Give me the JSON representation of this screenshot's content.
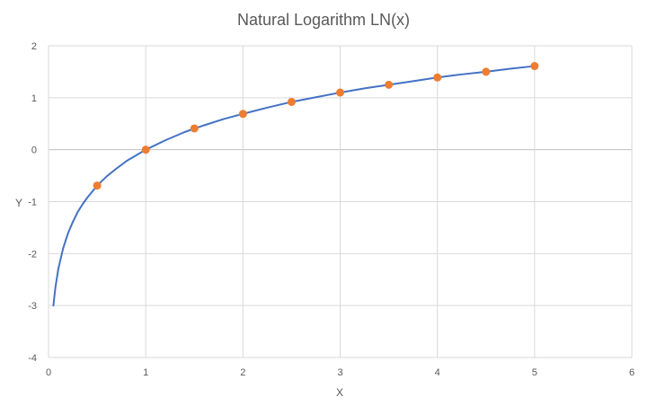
{
  "chart_data": {
    "type": "scatter",
    "title": "Natural Logarithm LN(x)",
    "xlabel": "X",
    "ylabel": "Y",
    "xlim": [
      0,
      6
    ],
    "ylim": [
      -4,
      2
    ],
    "x_ticks": [
      "0",
      "1",
      "2",
      "3",
      "4",
      "5",
      "6"
    ],
    "y_ticks": [
      "2",
      "1",
      "0",
      "-1",
      "-2",
      "-3",
      "-4"
    ],
    "grid": true,
    "legend": "none",
    "series": [
      {
        "kind": "line",
        "color": "#4472C4",
        "function": "ln(x)",
        "x": [
          0.05,
          0.07,
          0.1,
          0.15,
          0.2,
          0.25,
          0.3,
          0.35,
          0.4,
          0.5,
          0.6,
          0.7,
          0.8,
          0.9,
          1.0,
          1.2,
          1.4,
          1.6,
          1.8,
          2.0,
          2.25,
          2.5,
          2.75,
          3.0,
          3.25,
          3.5,
          3.75,
          4.0,
          4.25,
          4.5,
          4.75,
          5.0
        ],
        "y": [
          -3.0,
          -2.66,
          -2.3,
          -1.9,
          -1.61,
          -1.39,
          -1.2,
          -1.05,
          -0.92,
          -0.69,
          -0.51,
          -0.36,
          -0.22,
          -0.11,
          0.0,
          0.18,
          0.34,
          0.47,
          0.59,
          0.69,
          0.81,
          0.92,
          1.01,
          1.1,
          1.18,
          1.25,
          1.32,
          1.39,
          1.45,
          1.5,
          1.56,
          1.61
        ]
      },
      {
        "kind": "markers",
        "color": "#ED7D31",
        "x": [
          0.5,
          1.0,
          1.5,
          2.0,
          2.5,
          3.0,
          3.5,
          4.0,
          4.5,
          5.0
        ],
        "y": [
          -0.69,
          0.0,
          0.41,
          0.69,
          0.92,
          1.1,
          1.25,
          1.39,
          1.5,
          1.61
        ]
      }
    ],
    "colors": {
      "grid": "#D9D9D9",
      "zero_line": "#BFBFBF",
      "text": "#595959"
    }
  }
}
